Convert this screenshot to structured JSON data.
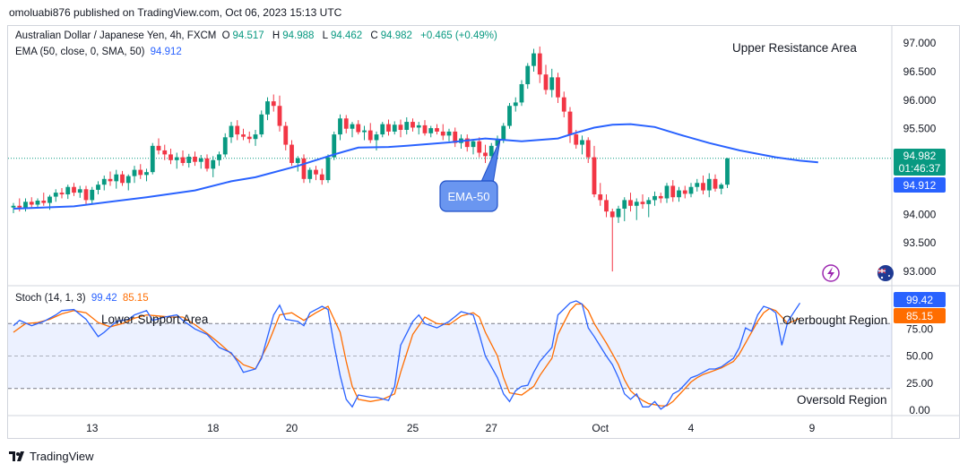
{
  "header": {
    "publisher": "omoluabi876 published on TradingView.com, Oct 06, 2023 15:13 UTC"
  },
  "legend": {
    "symbol": "Australian Dollar / Japanese Yen, 4h, FXCM",
    "open_label": "O",
    "open": "94.517",
    "high_label": "H",
    "high": "94.988",
    "low_label": "L",
    "low": "94.462",
    "close_label": "C",
    "close": "94.982",
    "change": "+0.465 (+0.49%)",
    "ema_label": "EMA (50, close, 0, SMA, 50)",
    "ema_value": "94.912",
    "stoch_label": "Stoch (14, 1, 3)",
    "stoch_k": "99.42",
    "stoch_d": "85.15"
  },
  "annotations": {
    "upper": "Upper Resistance Area",
    "lower": "Lower Support Area",
    "overbought": "Overbought Region",
    "oversold": "Oversold Region",
    "ema_callout": "EMA-50"
  },
  "price_tag": {
    "price": "94.982",
    "countdown": "01:46:37",
    "ema": "94.912"
  },
  "stoch_tags": {
    "k": "99.42",
    "d": "85.15"
  },
  "footer": {
    "brand": "TradingView"
  },
  "colors": {
    "up": "#089981",
    "down": "#f23645",
    "ema": "#2962ff",
    "stoch_k": "#2962ff",
    "stoch_d": "#ff6d00",
    "band": "#2962ff"
  },
  "chart_data": {
    "type": "candlestick",
    "title": "Australian Dollar / Japanese Yen, 4h, FXCM",
    "price_axis": {
      "ylim": [
        92.75,
        97.3
      ],
      "ticks": [
        "97.000",
        "96.500",
        "96.000",
        "95.500",
        "94.000",
        "93.500",
        "93.000"
      ]
    },
    "stoch_axis": {
      "ylim": [
        -5,
        115
      ],
      "ticks": [
        "75.00",
        "50.00",
        "25.00",
        "0.00"
      ]
    },
    "x_ticks": [
      {
        "label": "13",
        "index": 13
      },
      {
        "label": "18",
        "index": 33
      },
      {
        "label": "20",
        "index": 46
      },
      {
        "label": "25",
        "index": 66
      },
      {
        "label": "27",
        "index": 79
      },
      {
        "label": "Oct",
        "index": 97
      },
      {
        "label": "4",
        "index": 112
      },
      {
        "label": "9",
        "index": 132
      }
    ],
    "ohlc": [
      [
        94.12,
        94.2,
        94.02,
        94.15
      ],
      [
        94.15,
        94.28,
        94.05,
        94.12
      ],
      [
        94.1,
        94.28,
        94.05,
        94.22
      ],
      [
        94.22,
        94.3,
        94.12,
        94.17
      ],
      [
        94.17,
        94.28,
        94.1,
        94.24
      ],
      [
        94.24,
        94.38,
        94.15,
        94.2
      ],
      [
        94.2,
        94.34,
        94.08,
        94.31
      ],
      [
        94.31,
        94.44,
        94.22,
        94.38
      ],
      [
        94.38,
        94.46,
        94.28,
        94.35
      ],
      [
        94.35,
        94.52,
        94.27,
        94.48
      ],
      [
        94.48,
        94.55,
        94.32,
        94.38
      ],
      [
        94.38,
        94.5,
        94.29,
        94.44
      ],
      [
        94.44,
        94.5,
        94.16,
        94.25
      ],
      [
        94.25,
        94.48,
        94.18,
        94.43
      ],
      [
        94.43,
        94.58,
        94.35,
        94.52
      ],
      [
        94.52,
        94.68,
        94.42,
        94.62
      ],
      [
        94.62,
        94.75,
        94.5,
        94.58
      ],
      [
        94.58,
        94.78,
        94.45,
        94.7
      ],
      [
        94.7,
        94.76,
        94.5,
        94.55
      ],
      [
        94.55,
        94.7,
        94.42,
        94.67
      ],
      [
        94.67,
        94.85,
        94.55,
        94.78
      ],
      [
        94.78,
        94.88,
        94.62,
        94.69
      ],
      [
        94.69,
        94.8,
        94.58,
        94.74
      ],
      [
        94.74,
        95.25,
        94.7,
        95.2
      ],
      [
        95.2,
        95.33,
        95.05,
        95.12
      ],
      [
        95.12,
        95.22,
        94.95,
        95.05
      ],
      [
        95.05,
        95.15,
        94.88,
        94.95
      ],
      [
        94.95,
        95.08,
        94.8,
        95.0
      ],
      [
        95.0,
        95.12,
        94.85,
        94.9
      ],
      [
        94.9,
        95.06,
        94.82,
        95.01
      ],
      [
        95.01,
        95.1,
        94.85,
        94.92
      ],
      [
        94.92,
        95.04,
        94.8,
        94.98
      ],
      [
        94.98,
        95.05,
        94.75,
        94.8
      ],
      [
        94.8,
        95.02,
        94.65,
        94.95
      ],
      [
        94.95,
        95.1,
        94.85,
        95.05
      ],
      [
        95.05,
        95.42,
        95.0,
        95.35
      ],
      [
        95.35,
        95.62,
        95.25,
        95.55
      ],
      [
        95.55,
        95.65,
        95.3,
        95.4
      ],
      [
        95.4,
        95.5,
        95.3,
        95.36
      ],
      [
        95.36,
        95.45,
        95.25,
        95.32
      ],
      [
        95.32,
        95.48,
        95.2,
        95.4
      ],
      [
        95.4,
        95.82,
        95.35,
        95.75
      ],
      [
        95.75,
        96.05,
        95.65,
        95.98
      ],
      [
        95.98,
        96.1,
        95.8,
        95.9
      ],
      [
        95.9,
        96.08,
        95.45,
        95.55
      ],
      [
        95.55,
        95.62,
        95.12,
        95.22
      ],
      [
        95.22,
        95.3,
        94.85,
        94.9
      ],
      [
        94.9,
        95.02,
        94.75,
        94.98
      ],
      [
        94.98,
        95.05,
        94.55,
        94.62
      ],
      [
        94.62,
        94.82,
        94.55,
        94.78
      ],
      [
        94.78,
        94.85,
        94.6,
        94.7
      ],
      [
        94.7,
        94.8,
        94.52,
        94.6
      ],
      [
        94.6,
        95.05,
        94.55,
        95.0
      ],
      [
        95.0,
        95.45,
        94.95,
        95.4
      ],
      [
        95.4,
        95.75,
        95.3,
        95.68
      ],
      [
        95.68,
        95.74,
        95.42,
        95.5
      ],
      [
        95.5,
        95.62,
        95.35,
        95.58
      ],
      [
        95.58,
        95.65,
        95.4,
        95.44
      ],
      [
        95.44,
        95.55,
        95.3,
        95.47
      ],
      [
        95.47,
        95.6,
        95.25,
        95.3
      ],
      [
        95.3,
        95.45,
        95.12,
        95.4
      ],
      [
        95.4,
        95.62,
        95.35,
        95.58
      ],
      [
        95.58,
        95.66,
        95.38,
        95.45
      ],
      [
        95.45,
        95.63,
        95.4,
        95.57
      ],
      [
        95.57,
        95.66,
        95.35,
        95.48
      ],
      [
        95.48,
        95.7,
        95.4,
        95.62
      ],
      [
        95.62,
        95.68,
        95.45,
        95.52
      ],
      [
        95.52,
        95.62,
        95.4,
        95.56
      ],
      [
        95.56,
        95.65,
        95.38,
        95.42
      ],
      [
        95.42,
        95.55,
        95.35,
        95.51
      ],
      [
        95.51,
        95.58,
        95.4,
        95.45
      ],
      [
        95.45,
        95.58,
        95.3,
        95.38
      ],
      [
        95.38,
        95.5,
        95.28,
        95.45
      ],
      [
        95.45,
        95.52,
        95.18,
        95.25
      ],
      [
        95.25,
        95.4,
        95.15,
        95.33
      ],
      [
        95.33,
        95.4,
        95.1,
        95.18
      ],
      [
        95.18,
        95.32,
        95.05,
        95.28
      ],
      [
        95.28,
        95.35,
        95.0,
        95.08
      ],
      [
        95.08,
        95.22,
        94.9,
        95.02
      ],
      [
        95.02,
        95.25,
        94.92,
        95.2
      ],
      [
        95.2,
        95.38,
        95.12,
        95.3
      ],
      [
        95.3,
        95.6,
        95.25,
        95.55
      ],
      [
        95.55,
        95.95,
        95.5,
        95.9
      ],
      [
        95.9,
        96.05,
        95.8,
        95.96
      ],
      [
        95.96,
        96.35,
        95.9,
        96.28
      ],
      [
        96.28,
        96.65,
        96.2,
        96.6
      ],
      [
        96.6,
        96.9,
        96.5,
        96.82
      ],
      [
        96.82,
        96.94,
        96.3,
        96.45
      ],
      [
        96.45,
        96.62,
        96.1,
        96.18
      ],
      [
        96.18,
        96.55,
        96.05,
        96.4
      ],
      [
        96.4,
        96.48,
        95.95,
        96.05
      ],
      [
        96.05,
        96.15,
        95.7,
        95.8
      ],
      [
        95.8,
        95.88,
        95.25,
        95.4
      ],
      [
        95.4,
        95.48,
        95.15,
        95.22
      ],
      [
        95.22,
        95.38,
        95.05,
        95.3
      ],
      [
        95.3,
        95.35,
        94.9,
        95.0
      ],
      [
        95.0,
        95.2,
        94.3,
        94.35
      ],
      [
        94.35,
        94.55,
        94.15,
        94.25
      ],
      [
        94.25,
        94.35,
        93.95,
        94.05
      ],
      [
        94.05,
        94.1,
        93.0,
        93.95
      ],
      [
        93.95,
        94.15,
        93.85,
        94.1
      ],
      [
        94.1,
        94.3,
        93.88,
        94.25
      ],
      [
        94.25,
        94.38,
        94.05,
        94.15
      ],
      [
        94.15,
        94.28,
        93.9,
        94.22
      ],
      [
        94.22,
        94.35,
        94.1,
        94.18
      ],
      [
        94.18,
        94.3,
        93.95,
        94.25
      ],
      [
        94.25,
        94.4,
        94.15,
        94.32
      ],
      [
        94.32,
        94.38,
        94.2,
        94.28
      ],
      [
        94.28,
        94.55,
        94.2,
        94.5
      ],
      [
        94.5,
        94.6,
        94.22,
        94.3
      ],
      [
        94.3,
        94.48,
        94.22,
        94.42
      ],
      [
        94.42,
        94.5,
        94.28,
        94.36
      ],
      [
        94.36,
        94.55,
        94.3,
        94.48
      ],
      [
        94.48,
        94.62,
        94.4,
        94.55
      ],
      [
        94.55,
        94.68,
        94.35,
        94.42
      ],
      [
        94.42,
        94.72,
        94.3,
        94.62
      ],
      [
        94.62,
        94.7,
        94.4,
        94.45
      ],
      [
        94.45,
        94.55,
        94.35,
        94.52
      ],
      [
        94.52,
        94.99,
        94.46,
        94.98
      ]
    ],
    "ema50": [
      [
        0,
        94.1
      ],
      [
        10,
        94.14
      ],
      [
        22,
        94.3
      ],
      [
        30,
        94.42
      ],
      [
        36,
        94.58
      ],
      [
        40,
        94.65
      ],
      [
        47,
        94.85
      ],
      [
        53,
        95.05
      ],
      [
        57,
        95.17
      ],
      [
        62,
        95.18
      ],
      [
        65,
        95.2
      ],
      [
        72,
        95.26
      ],
      [
        78,
        95.33
      ],
      [
        84,
        95.28
      ],
      [
        90,
        95.33
      ],
      [
        93,
        95.43
      ],
      [
        96,
        95.52
      ],
      [
        99,
        95.57
      ],
      [
        102,
        95.58
      ],
      [
        106,
        95.53
      ],
      [
        110,
        95.4
      ],
      [
        115,
        95.25
      ],
      [
        120,
        95.12
      ],
      [
        126,
        95.0
      ],
      [
        130,
        94.94
      ],
      [
        133,
        94.91
      ]
    ],
    "stoch_k": [
      [
        0,
        78
      ],
      [
        1,
        83
      ],
      [
        3,
        78
      ],
      [
        5,
        82
      ],
      [
        7,
        88
      ],
      [
        8,
        92
      ],
      [
        10,
        93
      ],
      [
        12,
        84
      ],
      [
        14,
        68
      ],
      [
        15,
        72
      ],
      [
        17,
        82
      ],
      [
        19,
        84
      ],
      [
        20,
        88
      ],
      [
        22,
        92
      ],
      [
        23,
        83
      ],
      [
        25,
        86
      ],
      [
        27,
        88
      ],
      [
        28,
        83
      ],
      [
        30,
        75
      ],
      [
        32,
        70
      ],
      [
        34,
        58
      ],
      [
        36,
        53
      ],
      [
        37,
        45
      ],
      [
        38,
        35
      ],
      [
        40,
        38
      ],
      [
        41,
        48
      ],
      [
        43,
        88
      ],
      [
        44,
        97
      ],
      [
        45,
        84
      ],
      [
        47,
        82
      ],
      [
        48,
        78
      ],
      [
        49,
        90
      ],
      [
        51,
        96
      ],
      [
        52,
        93
      ],
      [
        53,
        60
      ],
      [
        54,
        32
      ],
      [
        55,
        10
      ],
      [
        56,
        3
      ],
      [
        57,
        14
      ],
      [
        59,
        12
      ],
      [
        60,
        12
      ],
      [
        62,
        9
      ],
      [
        63,
        22
      ],
      [
        64,
        60
      ],
      [
        66,
        82
      ],
      [
        67,
        88
      ],
      [
        68,
        80
      ],
      [
        70,
        76
      ],
      [
        72,
        82
      ],
      [
        74,
        91
      ],
      [
        76,
        88
      ],
      [
        77,
        70
      ],
      [
        78,
        50
      ],
      [
        80,
        30
      ],
      [
        81,
        15
      ],
      [
        82,
        8
      ],
      [
        83,
        18
      ],
      [
        84,
        22
      ],
      [
        85,
        23
      ],
      [
        86,
        35
      ],
      [
        87,
        45
      ],
      [
        89,
        58
      ],
      [
        90,
        88
      ],
      [
        92,
        99
      ],
      [
        93,
        101
      ],
      [
        94,
        98
      ],
      [
        95,
        76
      ],
      [
        96,
        68
      ],
      [
        98,
        50
      ],
      [
        99,
        42
      ],
      [
        100,
        30
      ],
      [
        101,
        15
      ],
      [
        102,
        10
      ],
      [
        103,
        15
      ],
      [
        104,
        3
      ],
      [
        105,
        3
      ],
      [
        106,
        8
      ],
      [
        107,
        1
      ],
      [
        108,
        5
      ],
      [
        109,
        15
      ],
      [
        110,
        18
      ],
      [
        111,
        24
      ],
      [
        112,
        30
      ],
      [
        113,
        32
      ],
      [
        114,
        35
      ],
      [
        115,
        38
      ],
      [
        116,
        38
      ],
      [
        117,
        40
      ],
      [
        118,
        44
      ],
      [
        119,
        48
      ],
      [
        120,
        58
      ],
      [
        121,
        76
      ],
      [
        122,
        73
      ],
      [
        123,
        88
      ],
      [
        124,
        96
      ],
      [
        125,
        94
      ],
      [
        126,
        90
      ],
      [
        127,
        60
      ],
      [
        128,
        82
      ],
      [
        130,
        99
      ]
    ],
    "stoch_d": [
      [
        0,
        72
      ],
      [
        2,
        80
      ],
      [
        4,
        81
      ],
      [
        6,
        84
      ],
      [
        8,
        89
      ],
      [
        10,
        92
      ],
      [
        12,
        90
      ],
      [
        14,
        81
      ],
      [
        16,
        77
      ],
      [
        18,
        80
      ],
      [
        20,
        85
      ],
      [
        22,
        88
      ],
      [
        24,
        87
      ],
      [
        26,
        86
      ],
      [
        28,
        86
      ],
      [
        30,
        79
      ],
      [
        32,
        71
      ],
      [
        34,
        62
      ],
      [
        36,
        52
      ],
      [
        38,
        42
      ],
      [
        40,
        38
      ],
      [
        42,
        60
      ],
      [
        44,
        88
      ],
      [
        46,
        90
      ],
      [
        48,
        83
      ],
      [
        50,
        90
      ],
      [
        52,
        96
      ],
      [
        54,
        72
      ],
      [
        55,
        45
      ],
      [
        56,
        22
      ],
      [
        57,
        10
      ],
      [
        59,
        8
      ],
      [
        61,
        10
      ],
      [
        63,
        15
      ],
      [
        64,
        35
      ],
      [
        66,
        70
      ],
      [
        68,
        86
      ],
      [
        70,
        80
      ],
      [
        72,
        79
      ],
      [
        74,
        87
      ],
      [
        76,
        90
      ],
      [
        77,
        86
      ],
      [
        78,
        72
      ],
      [
        80,
        50
      ],
      [
        81,
        30
      ],
      [
        82,
        16
      ],
      [
        84,
        14
      ],
      [
        86,
        22
      ],
      [
        87,
        32
      ],
      [
        89,
        48
      ],
      [
        90,
        70
      ],
      [
        92,
        92
      ],
      [
        93,
        98
      ],
      [
        94,
        98
      ],
      [
        95,
        92
      ],
      [
        96,
        80
      ],
      [
        98,
        62
      ],
      [
        99,
        52
      ],
      [
        100,
        42
      ],
      [
        101,
        28
      ],
      [
        102,
        18
      ],
      [
        103,
        13
      ],
      [
        104,
        9
      ],
      [
        105,
        6
      ],
      [
        106,
        5
      ],
      [
        107,
        4
      ],
      [
        108,
        4
      ],
      [
        109,
        8
      ],
      [
        110,
        14
      ],
      [
        111,
        20
      ],
      [
        112,
        26
      ],
      [
        113,
        30
      ],
      [
        114,
        33
      ],
      [
        115,
        35
      ],
      [
        116,
        37
      ],
      [
        117,
        39
      ],
      [
        118,
        42
      ],
      [
        119,
        45
      ],
      [
        120,
        52
      ],
      [
        121,
        62
      ],
      [
        122,
        72
      ],
      [
        123,
        82
      ],
      [
        124,
        90
      ],
      [
        125,
        94
      ],
      [
        126,
        92
      ],
      [
        127,
        86
      ],
      [
        128,
        80
      ],
      [
        130,
        85
      ]
    ]
  }
}
